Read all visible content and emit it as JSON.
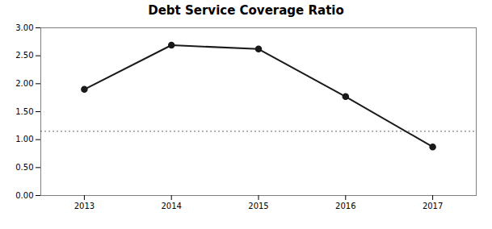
{
  "chart_data": {
    "type": "line",
    "title": "Debt Service Coverage Ratio",
    "x": [
      2013,
      2014,
      2015,
      2016,
      2017
    ],
    "values": [
      1.9,
      2.69,
      2.62,
      1.77,
      0.87
    ],
    "reference_line": 1.15,
    "color": "#1a1a1a",
    "marker": "circle",
    "line_style": "solid",
    "xlim": [
      2012.5,
      2017.5
    ],
    "xticks": [
      2013,
      2014,
      2015,
      2016,
      2017
    ],
    "ylim": [
      0,
      3
    ],
    "yticks": [
      {
        "value": 0,
        "label": "0.00"
      },
      {
        "value": 0.5,
        "label": "0.50"
      },
      {
        "value": 1,
        "label": "1.00"
      },
      {
        "value": 1.5,
        "label": "1.50"
      },
      {
        "value": 2,
        "label": "2.00"
      },
      {
        "value": 2.5,
        "label": "2.50"
      },
      {
        "value": 3,
        "label": "3.00"
      }
    ],
    "grid": false
  }
}
